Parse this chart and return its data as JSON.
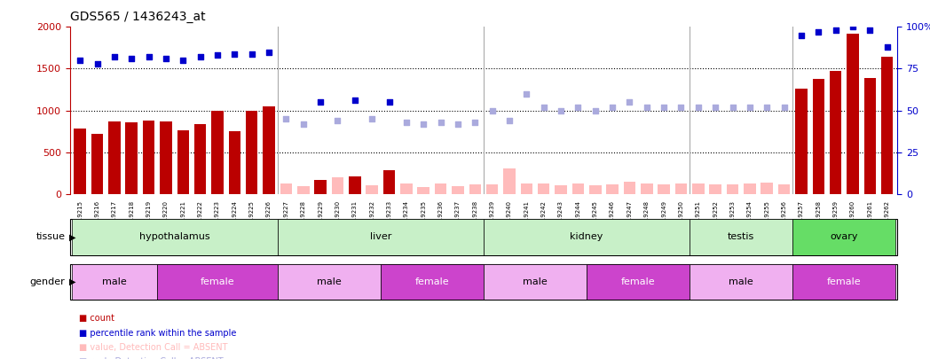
{
  "title": "GDS565 / 1436243_at",
  "samples": [
    "GSM19215",
    "GSM19216",
    "GSM19217",
    "GSM19218",
    "GSM19219",
    "GSM19220",
    "GSM19221",
    "GSM19222",
    "GSM19223",
    "GSM19224",
    "GSM19225",
    "GSM19226",
    "GSM19227",
    "GSM19228",
    "GSM19229",
    "GSM19230",
    "GSM19231",
    "GSM19232",
    "GSM19233",
    "GSM19234",
    "GSM19235",
    "GSM19236",
    "GSM19237",
    "GSM19238",
    "GSM19239",
    "GSM19240",
    "GSM19241",
    "GSM19242",
    "GSM19243",
    "GSM19244",
    "GSM19245",
    "GSM19246",
    "GSM19247",
    "GSM19248",
    "GSM19249",
    "GSM19250",
    "GSM19251",
    "GSM19252",
    "GSM19253",
    "GSM19254",
    "GSM19255",
    "GSM19256",
    "GSM19257",
    "GSM19258",
    "GSM19259",
    "GSM19260",
    "GSM19261",
    "GSM19262"
  ],
  "count_values": [
    780,
    720,
    870,
    860,
    880,
    870,
    760,
    840,
    990,
    750,
    1000,
    1050,
    null,
    null,
    170,
    null,
    210,
    null,
    280,
    null,
    null,
    null,
    null,
    null,
    null,
    null,
    null,
    null,
    null,
    null,
    null,
    null,
    null,
    null,
    null,
    null,
    null,
    null,
    null,
    null,
    null,
    null,
    1260,
    1380,
    1470,
    1920,
    1390,
    1640
  ],
  "absent_values": [
    null,
    null,
    null,
    null,
    null,
    null,
    null,
    null,
    null,
    null,
    null,
    null,
    120,
    90,
    null,
    200,
    null,
    100,
    null,
    120,
    80,
    120,
    90,
    110,
    110,
    300,
    120,
    120,
    100,
    120,
    100,
    110,
    150,
    120,
    110,
    120,
    120,
    110,
    110,
    120,
    140,
    110,
    null,
    null,
    null,
    null,
    null,
    null
  ],
  "percentile_rank": [
    80,
    78,
    82,
    81,
    82,
    81,
    80,
    82,
    83,
    84,
    84,
    85,
    null,
    null,
    55,
    null,
    56,
    null,
    55,
    null,
    null,
    null,
    null,
    null,
    null,
    null,
    null,
    null,
    null,
    null,
    null,
    null,
    null,
    null,
    null,
    null,
    null,
    null,
    null,
    null,
    null,
    null,
    95,
    97,
    98,
    100,
    98,
    88
  ],
  "absent_rank": [
    null,
    null,
    null,
    null,
    null,
    null,
    null,
    null,
    null,
    null,
    null,
    null,
    45,
    42,
    null,
    44,
    null,
    45,
    null,
    43,
    42,
    43,
    42,
    43,
    50,
    44,
    60,
    52,
    50,
    52,
    50,
    52,
    55,
    52,
    52,
    52,
    52,
    52,
    52,
    52,
    52,
    52,
    null,
    null,
    null,
    null,
    null,
    null
  ],
  "tissue_groups": [
    {
      "label": "hypothalamus",
      "start": 0,
      "end": 11,
      "color": "#c8f0c8"
    },
    {
      "label": "liver",
      "start": 12,
      "end": 23,
      "color": "#c8f0c8"
    },
    {
      "label": "kidney",
      "start": 24,
      "end": 35,
      "color": "#c8f0c8"
    },
    {
      "label": "testis",
      "start": 36,
      "end": 41,
      "color": "#c8f0c8"
    },
    {
      "label": "ovary",
      "start": 42,
      "end": 47,
      "color": "#66dd66"
    }
  ],
  "gender_groups": [
    {
      "label": "male",
      "start": 0,
      "end": 4,
      "color": "#f0b0f0"
    },
    {
      "label": "female",
      "start": 5,
      "end": 11,
      "color": "#cc44cc"
    },
    {
      "label": "male",
      "start": 12,
      "end": 17,
      "color": "#f0b0f0"
    },
    {
      "label": "female",
      "start": 18,
      "end": 23,
      "color": "#cc44cc"
    },
    {
      "label": "male",
      "start": 24,
      "end": 29,
      "color": "#f0b0f0"
    },
    {
      "label": "female",
      "start": 30,
      "end": 35,
      "color": "#cc44cc"
    },
    {
      "label": "male",
      "start": 36,
      "end": 41,
      "color": "#f0b0f0"
    },
    {
      "label": "female",
      "start": 42,
      "end": 47,
      "color": "#cc44cc"
    }
  ],
  "ylim_left": [
    0,
    2000
  ],
  "ylim_right": [
    0,
    100
  ],
  "bar_color_present": "#bb0000",
  "bar_color_absent": "#ffbbbb",
  "dot_color_present": "#0000cc",
  "dot_color_absent": "#aaaadd",
  "bg_color": "#ffffff",
  "sep_color": "#aaaaaa",
  "tissue_bg": "#e0e0e0",
  "gender_bg": "#e0e0e0"
}
